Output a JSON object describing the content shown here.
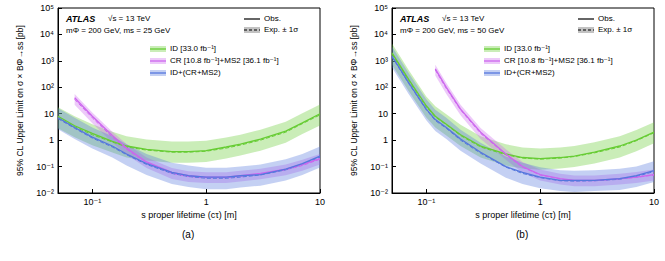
{
  "chart_data": [
    {
      "type": "line",
      "panel_label": "(a)",
      "annotations": [
        "ATLAS",
        "√s = 13 TeV",
        "mΦ = 200 GeV, ms = 25 GeV"
      ],
      "legend_labels": {
        "observed": "Obs.",
        "expected": "Exp. ± 1σ"
      },
      "x_label": "s proper lifetime (cτ) [m]",
      "y_label": "95% CL Upper Limit on σ × BΦ→ss [pb]",
      "log": true,
      "grid": false,
      "legend": "upper right",
      "xlim": [
        0.05,
        10
      ],
      "xticks": [
        {
          "value": 0.1,
          "label": "10⁻¹"
        },
        1,
        10
      ],
      "ylim": [
        0.01,
        100000
      ],
      "yticks": [
        {
          "value": 0.01,
          "label": "10⁻²"
        },
        {
          "value": 0.1,
          "label": "10⁻¹"
        },
        1,
        10,
        {
          "value": 100,
          "label": "10²"
        },
        {
          "value": 1000,
          "label": "10³"
        },
        {
          "value": 10000,
          "label": "10⁴"
        },
        {
          "value": 100000,
          "label": "10⁵"
        }
      ],
      "x": [
        0.05,
        0.07,
        0.1,
        0.15,
        0.2,
        0.3,
        0.5,
        0.7,
        1,
        1.5,
        2,
        3,
        5,
        7,
        10
      ],
      "series": [
        {
          "name": "ID [33.0 fb⁻¹]",
          "color": "#66cc33",
          "values": [
            8,
            3.5,
            1.8,
            0.9,
            0.6,
            0.45,
            0.37,
            0.37,
            0.4,
            0.55,
            0.7,
            1.1,
            2.2,
            4.5,
            10
          ],
          "expected": [
            7,
            3.2,
            1.6,
            0.85,
            0.55,
            0.42,
            0.35,
            0.35,
            0.38,
            0.5,
            0.65,
            1.0,
            2.0,
            4.2,
            9
          ],
          "expected_low": [
            2.8,
            1.3,
            0.64,
            0.34,
            0.22,
            0.17,
            0.14,
            0.14,
            0.15,
            0.2,
            0.26,
            0.4,
            0.8,
            1.7,
            3.6
          ],
          "expected_high": [
            17.5,
            8,
            4,
            2.1,
            1.4,
            1.05,
            0.88,
            0.88,
            0.95,
            1.25,
            1.6,
            2.5,
            5,
            10.5,
            22.5
          ]
        },
        {
          "name": "CR [10.8 fb⁻¹]+MS2 [36.1 fb⁻¹]",
          "color": "#cc66ee",
          "values": [
            null,
            40,
            8,
            1.5,
            0.5,
            0.15,
            0.06,
            0.045,
            0.04,
            0.04,
            0.045,
            0.055,
            0.08,
            0.12,
            0.2
          ],
          "expected": [
            null,
            35,
            7,
            1.3,
            0.45,
            0.14,
            0.055,
            0.042,
            0.038,
            0.038,
            0.043,
            0.052,
            0.075,
            0.11,
            0.19
          ],
          "expected_low": [
            null,
            22,
            4.4,
            0.81,
            0.28,
            0.088,
            0.034,
            0.026,
            0.024,
            0.024,
            0.027,
            0.033,
            0.047,
            0.069,
            0.12
          ],
          "expected_high": [
            null,
            56,
            11,
            2.1,
            0.72,
            0.22,
            0.088,
            0.067,
            0.061,
            0.061,
            0.069,
            0.083,
            0.12,
            0.18,
            0.3
          ]
        },
        {
          "name": "ID+(CR+MS2)",
          "color": "#5577dd",
          "values": [
            7,
            3,
            1.3,
            0.6,
            0.3,
            0.13,
            0.06,
            0.045,
            0.04,
            0.04,
            0.045,
            0.05,
            0.08,
            0.13,
            0.25
          ],
          "expected": [
            6.5,
            2.8,
            1.2,
            0.55,
            0.28,
            0.12,
            0.055,
            0.042,
            0.036,
            0.036,
            0.04,
            0.048,
            0.075,
            0.12,
            0.23
          ],
          "expected_low": [
            2.6,
            1.1,
            0.48,
            0.22,
            0.11,
            0.048,
            0.022,
            0.017,
            0.014,
            0.014,
            0.016,
            0.019,
            0.03,
            0.048,
            0.092
          ],
          "expected_high": [
            16,
            7,
            3,
            1.4,
            0.7,
            0.3,
            0.14,
            0.11,
            0.09,
            0.09,
            0.1,
            0.12,
            0.19,
            0.3,
            0.58
          ]
        }
      ]
    },
    {
      "type": "line",
      "panel_label": "(b)",
      "annotations": [
        "ATLAS",
        "√s = 13 TeV",
        "mΦ = 200 GeV, ms = 50 GeV"
      ],
      "legend_labels": {
        "observed": "Obs.",
        "expected": "Exp. ± 1σ"
      },
      "x_label": "s proper lifetime (cτ) [m]",
      "y_label": "95% CL Upper Limit on σ × BΦ→ss [pb]",
      "log": true,
      "grid": false,
      "legend": "upper right",
      "xlim": [
        0.05,
        10
      ],
      "xticks": [
        {
          "value": 0.1,
          "label": "10⁻¹"
        },
        1,
        10
      ],
      "ylim": [
        0.01,
        100000
      ],
      "yticks": [
        {
          "value": 0.01,
          "label": "10⁻²"
        },
        {
          "value": 0.1,
          "label": "10⁻¹"
        },
        1,
        10,
        {
          "value": 100,
          "label": "10²"
        },
        {
          "value": 1000,
          "label": "10³"
        },
        {
          "value": 10000,
          "label": "10⁴"
        },
        {
          "value": 100000,
          "label": "10⁵"
        }
      ],
      "x": [
        0.05,
        0.07,
        0.1,
        0.12,
        0.15,
        0.2,
        0.3,
        0.5,
        0.7,
        1,
        1.5,
        2,
        3,
        5,
        7,
        10
      ],
      "series": [
        {
          "name": "ID [33.0 fb⁻¹]",
          "color": "#66cc33",
          "values": [
            2000,
            200,
            20,
            8,
            4,
            1.6,
            0.6,
            0.3,
            0.22,
            0.2,
            0.22,
            0.25,
            0.35,
            0.6,
            1,
            2
          ],
          "expected": [
            1800,
            180,
            18,
            7.5,
            3.8,
            1.5,
            0.55,
            0.28,
            0.21,
            0.19,
            0.21,
            0.24,
            0.33,
            0.55,
            0.95,
            1.9
          ],
          "expected_low": [
            720,
            72,
            7.2,
            3,
            1.5,
            0.6,
            0.22,
            0.11,
            0.084,
            0.076,
            0.084,
            0.096,
            0.13,
            0.22,
            0.38,
            0.76
          ],
          "expected_high": [
            4500,
            450,
            45,
            19,
            9.5,
            3.8,
            1.4,
            0.7,
            0.53,
            0.48,
            0.53,
            0.6,
            0.83,
            1.4,
            2.4,
            4.8
          ]
        },
        {
          "name": "CR [10.8 fb⁻¹]+MS2 [36.1 fb⁻¹]",
          "color": "#cc66ee",
          "values": [
            null,
            null,
            null,
            500,
            100,
            15,
            2,
            0.3,
            0.1,
            0.05,
            0.035,
            0.03,
            0.03,
            0.035,
            0.04,
            0.05
          ],
          "expected": [
            null,
            null,
            null,
            450,
            90,
            14,
            1.8,
            0.28,
            0.095,
            0.048,
            0.034,
            0.029,
            0.029,
            0.034,
            0.039,
            0.048
          ],
          "expected_low": [
            null,
            null,
            null,
            280,
            56,
            8.8,
            1.1,
            0.18,
            0.059,
            0.03,
            0.021,
            0.018,
            0.018,
            0.021,
            0.024,
            0.03
          ],
          "expected_high": [
            null,
            null,
            null,
            720,
            144,
            22,
            2.9,
            0.45,
            0.15,
            0.077,
            0.054,
            0.046,
            0.046,
            0.054,
            0.062,
            0.077
          ]
        },
        {
          "name": "ID+(CR+MS2)",
          "color": "#5577dd",
          "values": [
            1500,
            150,
            15,
            6,
            3,
            1.1,
            0.35,
            0.1,
            0.06,
            0.04,
            0.03,
            0.03,
            0.03,
            0.035,
            0.045,
            0.07
          ],
          "expected": [
            1400,
            140,
            14,
            5.5,
            2.8,
            1,
            0.32,
            0.095,
            0.055,
            0.038,
            0.029,
            0.028,
            0.029,
            0.033,
            0.042,
            0.065
          ],
          "expected_low": [
            560,
            56,
            5.6,
            2.2,
            1.1,
            0.4,
            0.13,
            0.038,
            0.022,
            0.015,
            0.012,
            0.011,
            0.012,
            0.013,
            0.017,
            0.026
          ],
          "expected_high": [
            3500,
            350,
            35,
            14,
            7,
            2.5,
            0.8,
            0.24,
            0.14,
            0.095,
            0.073,
            0.07,
            0.073,
            0.083,
            0.1,
            0.16
          ]
        }
      ]
    }
  ]
}
